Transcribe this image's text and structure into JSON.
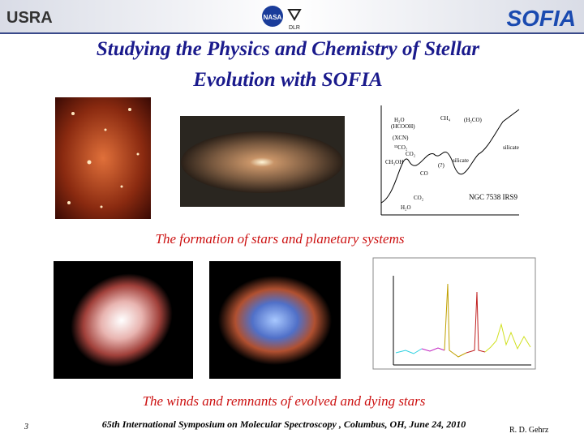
{
  "header": {
    "left_logo": "USRA",
    "center_logo_1": "NASA",
    "center_logo_2": "DLR",
    "right_logo": "SOFIA"
  },
  "title": {
    "line1": "Studying the Physics and Chemistry of Stellar",
    "line2": "Evolution with SOFIA"
  },
  "spectrum": {
    "labels": [
      "H₂O",
      "(HCOOH)",
      "CH₄",
      "(H₂CO)",
      "(XCN)",
      "¹³CO₂",
      "CO₂",
      "CH₃OH",
      "CO",
      "(?)",
      "silicate",
      "silicate",
      "CO₂",
      "H₂O"
    ],
    "source": "NGC 7538 IRS9"
  },
  "captions": [
    "The formation of  stars and planetary systems",
    "The winds and remnants of evolved and dying stars"
  ],
  "footer": {
    "slide_number": "3",
    "event": "65th International Symposium on Molecular Spectroscopy , Columbus, OH, June 24, 2010",
    "author": "R. D. Gehrz"
  }
}
